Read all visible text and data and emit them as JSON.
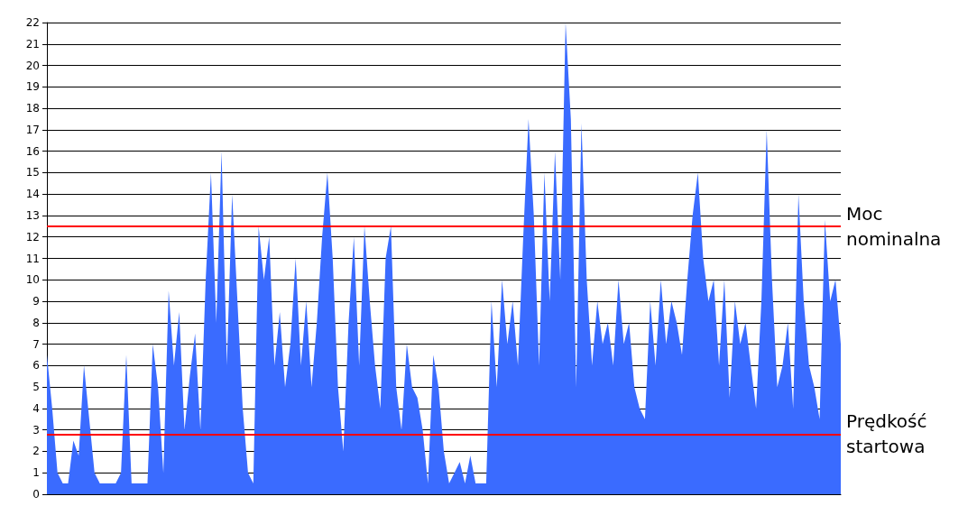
{
  "chart_data": {
    "type": "area",
    "categories": [
      null,
      null,
      null,
      null,
      null,
      null,
      null,
      null,
      null,
      null,
      null,
      null,
      null,
      null,
      null,
      null,
      null,
      null,
      null,
      null,
      null,
      null,
      null,
      null,
      null,
      null,
      null,
      null,
      null,
      null,
      null,
      null,
      null,
      null,
      null,
      null,
      null,
      null,
      null,
      null,
      null,
      null,
      null,
      null,
      null,
      null,
      null,
      null,
      null,
      null,
      null,
      null,
      null,
      null,
      null,
      null,
      null,
      null,
      null,
      null,
      null,
      null,
      null,
      null,
      null,
      null,
      null,
      null,
      null,
      null,
      null,
      null,
      null,
      null,
      null,
      null,
      null,
      null,
      null,
      null,
      null,
      null,
      null,
      null,
      null,
      null,
      null,
      null,
      null,
      null,
      null,
      null,
      null,
      null,
      null,
      null,
      null,
      null,
      null,
      null,
      null,
      null,
      null,
      null,
      null,
      null,
      null,
      null,
      null,
      null,
      null,
      null,
      null,
      null,
      null,
      null,
      null,
      null,
      null,
      null,
      null,
      null,
      null,
      null,
      null,
      null,
      null,
      null,
      null,
      null,
      null,
      null,
      null,
      null,
      null,
      null,
      null,
      null,
      null,
      null,
      null,
      null,
      null,
      null,
      null,
      null,
      null,
      null,
      null,
      null,
      null
    ],
    "series": [
      {
        "color": "#3a6bff",
        "values": [
          6.5,
          4,
          1,
          0.5,
          0.5,
          2.5,
          1.8,
          6,
          3.5,
          1,
          0.5,
          0.5,
          0.5,
          0.5,
          1,
          6.5,
          0.5,
          0.5,
          0.5,
          0.5,
          7,
          5,
          1,
          9.5,
          6,
          8.5,
          3,
          5.5,
          7.5,
          3,
          10,
          15,
          8,
          16,
          6,
          14,
          9,
          4,
          1,
          0.5,
          12.5,
          10,
          12,
          6,
          8.5,
          5,
          7,
          11,
          6,
          9,
          5,
          8,
          12,
          15,
          11,
          5,
          2,
          8,
          12,
          6,
          12.5,
          9,
          6,
          4,
          11,
          12.5,
          5,
          3,
          7,
          5,
          4.5,
          3,
          0.5,
          6.5,
          5,
          2,
          0.5,
          1,
          1.5,
          0.5,
          1.8,
          0.5,
          0.5,
          0.5,
          9,
          5,
          10,
          7,
          9,
          6,
          12,
          17.5,
          13,
          6,
          15,
          9,
          16,
          10,
          22,
          17.5,
          5,
          17.3,
          10,
          6,
          9,
          7,
          8,
          6,
          10,
          7,
          8,
          5,
          4,
          3.5,
          9,
          6,
          10,
          7,
          9,
          8,
          6.5,
          10,
          13,
          15,
          11,
          9,
          10,
          6,
          10,
          4.5,
          9,
          7,
          8,
          6,
          4,
          9,
          17,
          10,
          5,
          6,
          8,
          4,
          14,
          9,
          6,
          5,
          3.5,
          12.8,
          9,
          10,
          7
        ]
      }
    ],
    "ylim": [
      0,
      22
    ],
    "yticks": [
      0,
      1,
      2,
      3,
      4,
      5,
      6,
      7,
      8,
      9,
      10,
      11,
      12,
      13,
      14,
      15,
      16,
      17,
      18,
      19,
      20,
      21,
      22
    ],
    "grid": "y",
    "ref_lines": [
      {
        "axis": "y",
        "value": 12.5,
        "label": "Moc nominalna",
        "color": "#ff0000"
      },
      {
        "axis": "y",
        "value": 2.8,
        "label": "Prędkość startowa",
        "color": "#ff0000"
      }
    ]
  }
}
